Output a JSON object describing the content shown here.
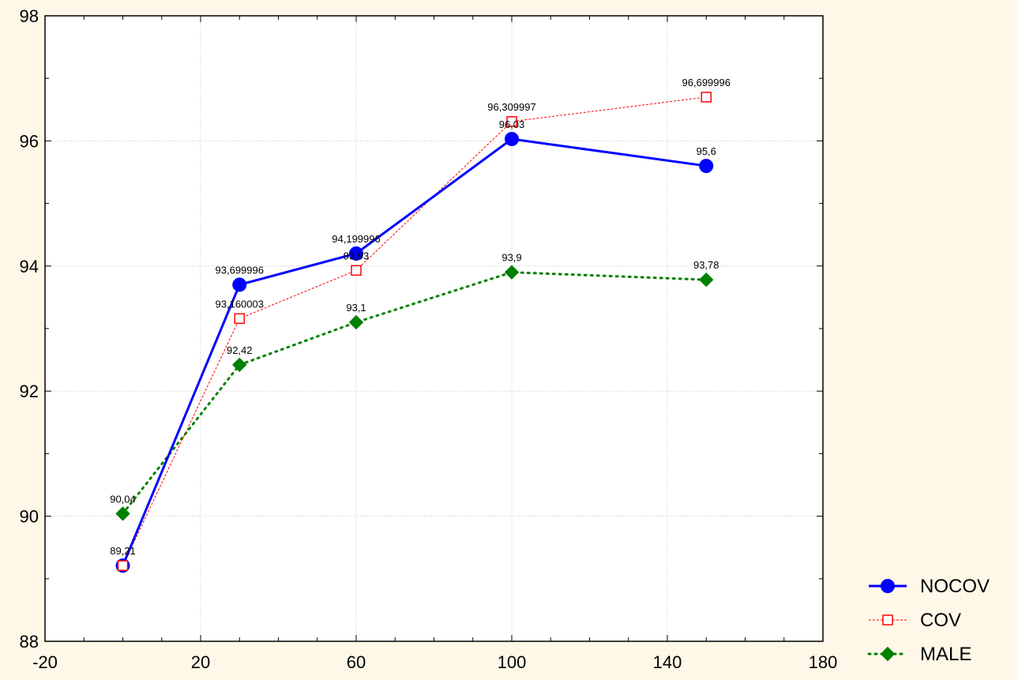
{
  "chart_data": {
    "type": "line",
    "title": "",
    "xlabel": "",
    "ylabel": "",
    "xlim": [
      -20,
      180
    ],
    "ylim": [
      88,
      98
    ],
    "xticks": [
      -20,
      20,
      60,
      100,
      140,
      180
    ],
    "yticks": [
      88,
      90,
      92,
      94,
      96,
      98
    ],
    "xtick_labels": [
      "-20",
      "20",
      "60",
      "100",
      "140",
      "180"
    ],
    "ytick_labels": [
      "88",
      "90",
      "92",
      "94",
      "96",
      "98"
    ],
    "grid": true,
    "legend_position": "bottom-right",
    "series": [
      {
        "name": "NOCOV",
        "color": "#0000ff",
        "marker": "circle",
        "line_style": "solid",
        "x": [
          0,
          30,
          60,
          100,
          150
        ],
        "y": [
          89.21,
          93.699996,
          94.199996,
          96.03,
          95.6
        ],
        "labels": [
          "89,21",
          "93,699996",
          "94,199996",
          "96,03",
          "95,6"
        ]
      },
      {
        "name": "COV",
        "color": "#ff0000",
        "marker": "square-open",
        "line_style": "dashed",
        "x": [
          0,
          30,
          60,
          100,
          150
        ],
        "y": [
          89.21,
          93.160003,
          93.93,
          96.309997,
          96.699996
        ],
        "labels": [
          "",
          "93,160003",
          "93,93",
          "96,309997",
          "96,699996"
        ]
      },
      {
        "name": "MALE",
        "color": "#008000",
        "marker": "diamond",
        "line_style": "dotted",
        "x": [
          0,
          30,
          60,
          100,
          150
        ],
        "y": [
          90.04,
          92.42,
          93.1,
          93.9,
          93.78
        ],
        "labels": [
          "90,04",
          "92,42",
          "93,1",
          "93,9",
          "93,78"
        ]
      }
    ]
  }
}
